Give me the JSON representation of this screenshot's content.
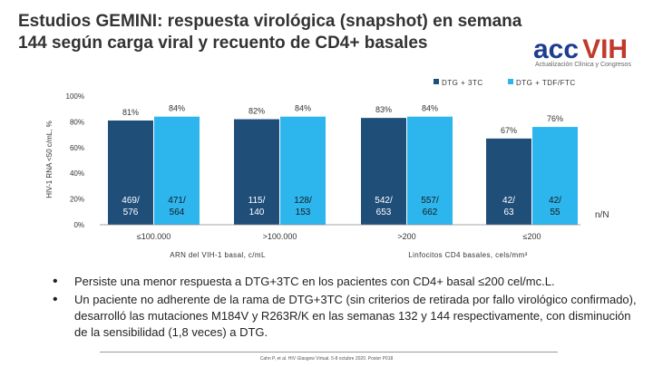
{
  "slide": {
    "title": "Estudios GEMINI: respuesta virológica (snapshot) en semana 144 según carga viral y recuento de CD4+ basales",
    "logo": {
      "main_left": "acc",
      "main_right": "VIH",
      "subtitle": "Actualización Clínica y Congresos"
    },
    "bullets": [
      "Persiste una menor respuesta a DTG+3TC en los pacientes con CD4+ basal ≤200 cel/mc.L.",
      "Un paciente no adherente de la rama de DTG+3TC (sin criterios de retirada por fallo virológico confirmado), desarrolló las mutaciones M184V y R263R/K en las semanas 132 y 144 respectivamente, con disminución de la sensibilidad (1,8 veces) a DTG."
    ],
    "footnote": "Cahn P, et al. HIV Glasgow Virtual. 5-8 octubre 2020. Poster P018",
    "colors": {
      "dtg_3tc": "#1f4e79",
      "dtg_tdf": "#2db5ee"
    }
  },
  "chart_data": {
    "type": "bar",
    "ylabel": "HIV-1 RNA <50 c/mL, %",
    "ylim": [
      0,
      100
    ],
    "yticks": [
      "0%",
      "20%",
      "40%",
      "60%",
      "80%",
      "100%"
    ],
    "legend": [
      {
        "name": "DTG + 3TC",
        "color": "#1f4e79"
      },
      {
        "name": "DTG + TDF/FTC",
        "color": "#2db5ee"
      }
    ],
    "legend_position": "top-right",
    "categories": [
      "≤100.000",
      ">100.000",
      ">200",
      "≤200"
    ],
    "series": [
      {
        "name": "DTG + 3TC",
        "values": [
          81,
          82,
          83,
          67
        ],
        "labels": [
          "81%",
          "82%",
          "83%",
          "67%"
        ],
        "counts": [
          "469/ 576",
          "115/ 140",
          "542/ 653",
          "42/ 63"
        ]
      },
      {
        "name": "DTG + TDF/FTC",
        "values": [
          84,
          84,
          84,
          76
        ],
        "labels": [
          "84%",
          "84%",
          "84%",
          "76%"
        ],
        "counts": [
          "471/ 564",
          "128/ 153",
          "557/ 662",
          "42/ 55"
        ]
      }
    ],
    "group_labels": [
      "ARN del VIH-1 basal, c/mL",
      "Linfocitos CD4 basales, cels/mm³"
    ],
    "nn_label": "n/N"
  }
}
